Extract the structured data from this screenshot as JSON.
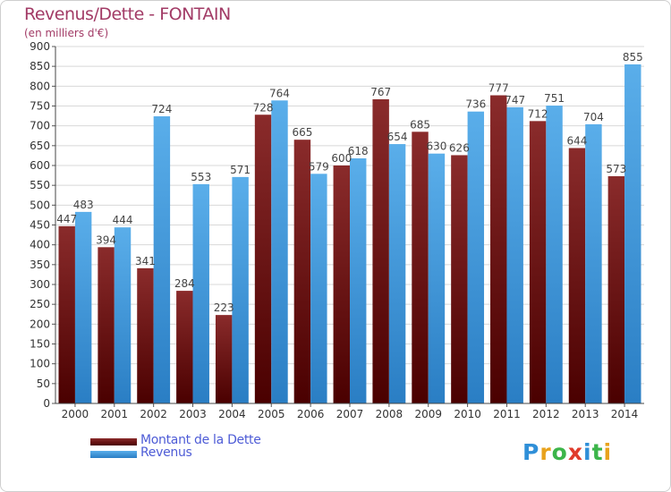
{
  "header": {
    "title": "Revenus/Dette - FONTAIN",
    "subtitle": "(en milliers d'€)"
  },
  "colors": {
    "title": "#a23b66",
    "debt_top": "#8a2b2b",
    "debt_bottom": "#4a0000",
    "revenue_top": "#5aaeea",
    "revenue_bottom": "#2a7ec4",
    "grid": "#d8d8d8",
    "legend_text": "#4d5bd6"
  },
  "chart_data": {
    "type": "bar",
    "title": "Revenus/Dette - FONTAIN",
    "subtitle": "(en milliers d'€)",
    "xlabel": "",
    "ylabel": "",
    "ylim": [
      0,
      900
    ],
    "ytick_step": 50,
    "grid": true,
    "legend_position": "bottom-left",
    "categories": [
      "2000",
      "2001",
      "2002",
      "2003",
      "2004",
      "2005",
      "2006",
      "2007",
      "2008",
      "2009",
      "2010",
      "2011",
      "2012",
      "2013",
      "2014"
    ],
    "series": [
      {
        "name": "Montant de la Dette",
        "values": [
          447,
          394,
          341,
          284,
          223,
          728,
          665,
          600,
          767,
          685,
          626,
          777,
          712,
          644,
          573
        ],
        "labels": [
          "447",
          "394",
          "341",
          "284",
          "223",
          "728",
          "665",
          "600",
          "767",
          "685",
          "626",
          "777",
          "712",
          "644",
          "573"
        ]
      },
      {
        "name": "Revenus",
        "values": [
          483,
          444,
          724,
          553,
          571,
          764,
          579,
          618,
          654,
          630,
          736,
          747,
          751,
          704,
          855
        ],
        "labels": [
          "483",
          "444",
          "724",
          "553",
          "571",
          "764",
          "579",
          "618",
          "654",
          "630",
          "736",
          "747",
          "751",
          "704",
          "855"
        ]
      }
    ]
  },
  "legend": {
    "items": [
      {
        "label": "Montant de la Dette"
      },
      {
        "label": "Revenus"
      }
    ]
  },
  "brand": {
    "letters": [
      "P",
      "r",
      "o",
      "x",
      "i",
      "t",
      "i"
    ],
    "letter_colors": [
      "#2f8fd8",
      "#e8a21c",
      "#3cb54a",
      "#e03b2b",
      "#2f8fd8",
      "#3cb54a",
      "#e8a21c"
    ]
  }
}
